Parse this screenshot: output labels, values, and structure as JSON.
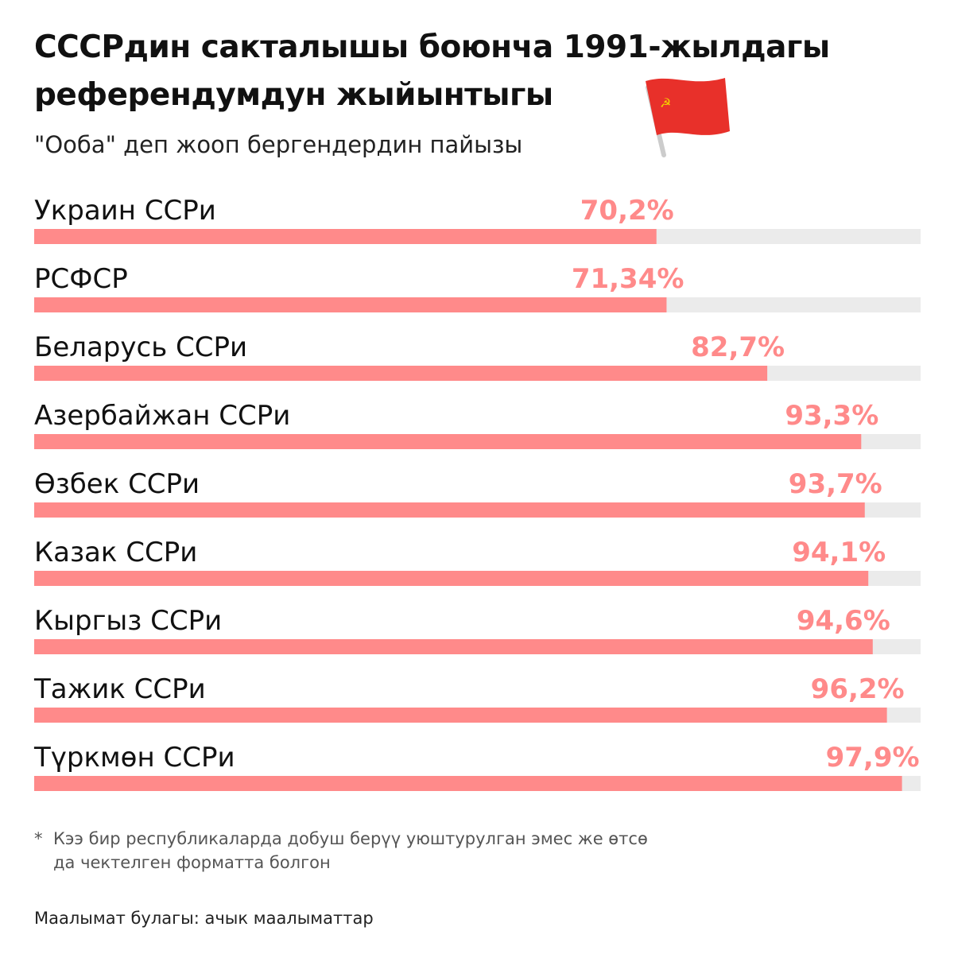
{
  "chart_data": {
    "type": "bar",
    "orientation": "horizontal",
    "title": "СССРдин сакталышы боюнча 1991-жылдагы референдумдун жыйынтыгы",
    "subtitle": "\"Ооба\" деп жооп бергендердин пайызы",
    "categories": [
      "Украин ССРи",
      "РСФСР",
      "Беларусь ССРи",
      "Азербайжан ССРи",
      "Өзбек ССРи",
      "Казак ССРи",
      "Кыргыз ССРи",
      "Тажик ССРи",
      "Түркмөн ССРи"
    ],
    "values": [
      70.2,
      71.34,
      82.7,
      93.3,
      93.7,
      94.1,
      94.6,
      96.2,
      97.9
    ],
    "value_labels": [
      "70,2%",
      "71,34%",
      "82,7%",
      "93,3%",
      "93,7%",
      "94,1%",
      "94,6%",
      "96,2%",
      "97,9%"
    ],
    "color": "#ff8a8a",
    "track_color": "#ebebeb",
    "label_color": "#ff8a8a",
    "xlim": [
      0,
      100
    ],
    "note_marker": "*",
    "note": "Кээ бир республикаларда добуш берүү уюштурулган эмес же өтсө да чектелген форматта болгон",
    "source": "Маалымат булагы: ачык маалыматтар"
  }
}
